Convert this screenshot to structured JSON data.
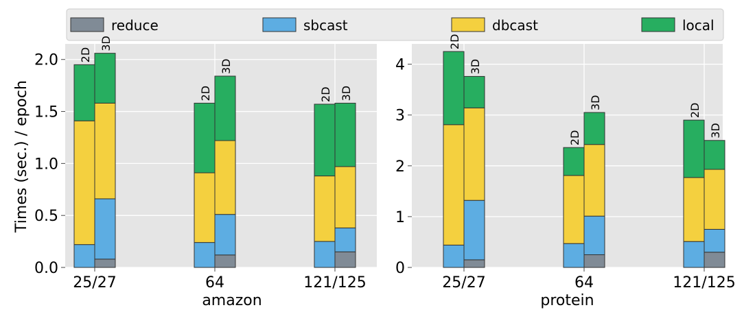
{
  "legend": {
    "items": [
      {
        "label": "reduce",
        "color": "#808b96"
      },
      {
        "label": "sbcast",
        "color": "#5dade2"
      },
      {
        "label": "dbcast",
        "color": "#f4d03f"
      },
      {
        "label": "local",
        "color": "#27ae60"
      }
    ]
  },
  "ylabel": "Times (sec.) / epoch",
  "chart_data": [
    {
      "type": "bar",
      "stacked": true,
      "xlabel": "amazon",
      "ylabel": "Times (sec.) / epoch",
      "ylim": [
        0,
        2.15
      ],
      "yticks": [
        "0.0",
        "0.5",
        "1.0",
        "1.5",
        "2.0"
      ],
      "categories": [
        "25/27",
        "64",
        "121/125"
      ],
      "bar_labels": [
        "2D",
        "3D"
      ],
      "bars": [
        {
          "category": "25/27",
          "label": "2D",
          "reduce": 0.0,
          "sbcast": 0.22,
          "dbcast": 1.19,
          "local": 0.54
        },
        {
          "category": "25/27",
          "label": "3D",
          "reduce": 0.08,
          "sbcast": 0.58,
          "dbcast": 0.92,
          "local": 0.48
        },
        {
          "category": "64",
          "label": "2D",
          "reduce": 0.0,
          "sbcast": 0.24,
          "dbcast": 0.67,
          "local": 0.67
        },
        {
          "category": "64",
          "label": "3D",
          "reduce": 0.12,
          "sbcast": 0.39,
          "dbcast": 0.71,
          "local": 0.62
        },
        {
          "category": "121/125",
          "label": "2D",
          "reduce": 0.0,
          "sbcast": 0.25,
          "dbcast": 0.63,
          "local": 0.69
        },
        {
          "category": "121/125",
          "label": "3D",
          "reduce": 0.15,
          "sbcast": 0.23,
          "dbcast": 0.59,
          "local": 0.61
        }
      ],
      "grid": true,
      "legend_position": "top"
    },
    {
      "type": "bar",
      "stacked": true,
      "xlabel": "protein",
      "ylabel": "",
      "ylim": [
        0,
        4.4
      ],
      "yticks": [
        "0",
        "1",
        "2",
        "3",
        "4"
      ],
      "categories": [
        "25/27",
        "64",
        "121/125"
      ],
      "bar_labels": [
        "2D",
        "3D"
      ],
      "bars": [
        {
          "category": "25/27",
          "label": "2D",
          "reduce": 0.0,
          "sbcast": 0.44,
          "dbcast": 2.37,
          "local": 1.44
        },
        {
          "category": "25/27",
          "label": "3D",
          "reduce": 0.15,
          "sbcast": 1.17,
          "dbcast": 1.82,
          "local": 0.62
        },
        {
          "category": "64",
          "label": "2D",
          "reduce": 0.0,
          "sbcast": 0.47,
          "dbcast": 1.34,
          "local": 0.55
        },
        {
          "category": "64",
          "label": "3D",
          "reduce": 0.25,
          "sbcast": 0.76,
          "dbcast": 1.41,
          "local": 0.63
        },
        {
          "category": "121/125",
          "label": "2D",
          "reduce": 0.0,
          "sbcast": 0.51,
          "dbcast": 1.26,
          "local": 1.13
        },
        {
          "category": "121/125",
          "label": "3D",
          "reduce": 0.3,
          "sbcast": 0.45,
          "dbcast": 1.18,
          "local": 0.57
        }
      ],
      "grid": true,
      "legend_position": "top"
    }
  ]
}
